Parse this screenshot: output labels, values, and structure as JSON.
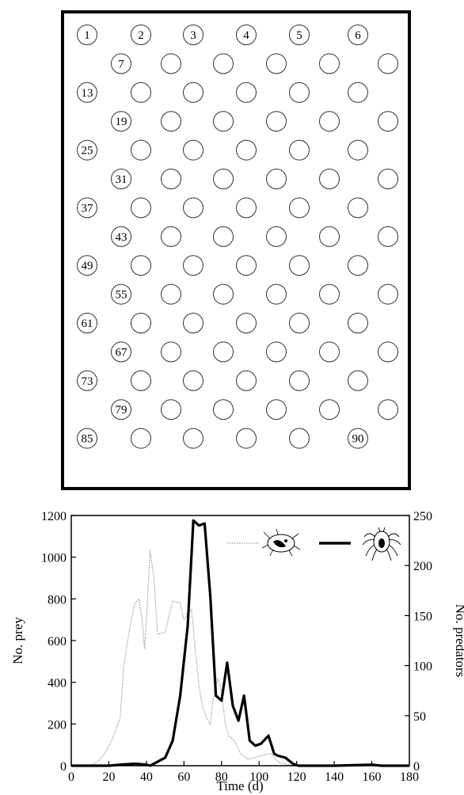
{
  "arena": {
    "rows": 15,
    "cols": 6,
    "labeled_cells": [
      1,
      2,
      3,
      4,
      5,
      6,
      7,
      13,
      19,
      25,
      31,
      37,
      43,
      49,
      55,
      61,
      67,
      73,
      79,
      85,
      90
    ]
  },
  "chart_data": {
    "type": "line",
    "xlabel": "Time (d)",
    "ylabel_left": "No. prey",
    "ylabel_right": "No. predators",
    "xlim": [
      0,
      180
    ],
    "ylim_left": [
      0,
      1200
    ],
    "ylim_right": [
      0,
      250
    ],
    "x_ticks": [
      0,
      20,
      40,
      60,
      80,
      100,
      120,
      140,
      160,
      180
    ],
    "y_ticks_left": [
      0,
      200,
      400,
      600,
      800,
      1000,
      1200
    ],
    "y_ticks_right": [
      0,
      50,
      100,
      150,
      200,
      250
    ],
    "legend_placement": "top-right",
    "series": [
      {
        "icon": "prey-mite-icon",
        "axis": "left",
        "color": "#9a9a9a",
        "style": "thin-dotted",
        "points": [
          [
            0,
            0
          ],
          [
            10,
            0
          ],
          [
            14,
            20
          ],
          [
            18,
            60
          ],
          [
            22,
            130
          ],
          [
            26,
            230
          ],
          [
            28,
            480
          ],
          [
            30,
            600
          ],
          [
            32,
            700
          ],
          [
            34,
            780
          ],
          [
            36,
            800
          ],
          [
            38,
            680
          ],
          [
            39,
            560
          ],
          [
            40,
            700
          ],
          [
            42,
            1030
          ],
          [
            44,
            900
          ],
          [
            46,
            630
          ],
          [
            50,
            640
          ],
          [
            54,
            790
          ],
          [
            58,
            780
          ],
          [
            60,
            700
          ],
          [
            62,
            730
          ],
          [
            64,
            750
          ],
          [
            66,
            560
          ],
          [
            68,
            380
          ],
          [
            70,
            280
          ],
          [
            72,
            230
          ],
          [
            74,
            200
          ],
          [
            76,
            350
          ],
          [
            78,
            420
          ],
          [
            80,
            350
          ],
          [
            82,
            200
          ],
          [
            84,
            140
          ],
          [
            86,
            130
          ],
          [
            88,
            100
          ],
          [
            90,
            60
          ],
          [
            94,
            30
          ],
          [
            98,
            40
          ],
          [
            102,
            50
          ],
          [
            106,
            60
          ],
          [
            110,
            20
          ],
          [
            114,
            5
          ],
          [
            120,
            0
          ],
          [
            180,
            0
          ]
        ]
      },
      {
        "icon": "predator-mite-icon",
        "axis": "right",
        "color": "#000000",
        "style": "thick-solid",
        "points": [
          [
            0,
            0
          ],
          [
            20,
            0
          ],
          [
            26,
            1
          ],
          [
            34,
            2
          ],
          [
            40,
            1
          ],
          [
            42,
            0
          ],
          [
            46,
            4
          ],
          [
            50,
            8
          ],
          [
            54,
            25
          ],
          [
            58,
            70
          ],
          [
            62,
            140
          ],
          [
            65,
            245
          ],
          [
            68,
            240
          ],
          [
            71,
            242
          ],
          [
            74,
            170
          ],
          [
            77,
            70
          ],
          [
            80,
            65
          ],
          [
            83,
            103
          ],
          [
            86,
            60
          ],
          [
            89,
            45
          ],
          [
            92,
            70
          ],
          [
            95,
            25
          ],
          [
            98,
            20
          ],
          [
            101,
            22
          ],
          [
            105,
            30
          ],
          [
            108,
            12
          ],
          [
            110,
            10
          ],
          [
            114,
            8
          ],
          [
            118,
            2
          ],
          [
            121,
            0
          ],
          [
            140,
            0
          ],
          [
            160,
            1
          ],
          [
            165,
            0
          ],
          [
            180,
            0
          ]
        ]
      }
    ]
  }
}
